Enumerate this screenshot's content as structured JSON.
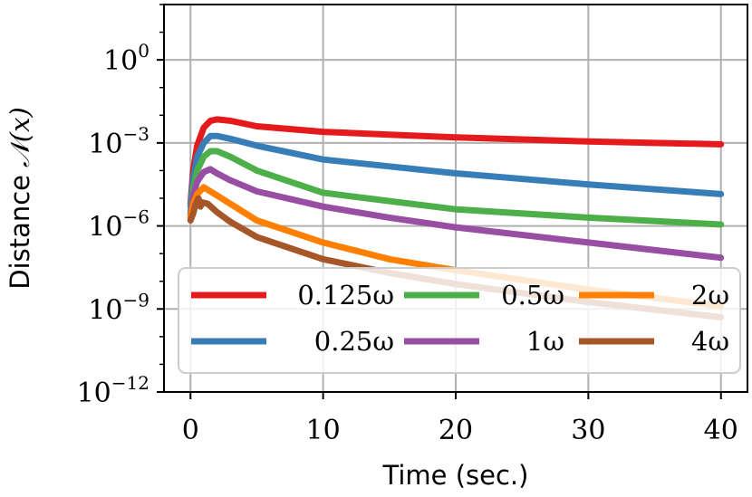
{
  "chart_data": {
    "type": "line",
    "title": "",
    "xlabel": "Time (sec.)",
    "ylabel": "Distance",
    "ylabel_math": "𝒩(x)",
    "xlim": [
      -2,
      42
    ],
    "ylim_log10": [
      -12,
      2
    ],
    "yscale": "log",
    "grid": true,
    "legend_position": "lower-right",
    "legend_columns": 3,
    "xticks": [
      {
        "value": 0,
        "label": "0"
      },
      {
        "value": 10,
        "label": "10"
      },
      {
        "value": 20,
        "label": "20"
      },
      {
        "value": 30,
        "label": "30"
      },
      {
        "value": 40,
        "label": "40"
      }
    ],
    "yticks": [
      {
        "exp": 0,
        "base": "10",
        "sup": "0"
      },
      {
        "exp": -3,
        "base": "10",
        "sup": "−3"
      },
      {
        "exp": -6,
        "base": "10",
        "sup": "−6"
      },
      {
        "exp": -9,
        "base": "10",
        "sup": "−9"
      },
      {
        "exp": -12,
        "base": "10",
        "sup": "−12"
      }
    ],
    "series": [
      {
        "name": "0.125ω",
        "color": "#e41a1c",
        "points": [
          [
            0,
            -5.2
          ],
          [
            0.2,
            -4.0
          ],
          [
            0.5,
            -3.1
          ],
          [
            1.0,
            -2.45
          ],
          [
            1.5,
            -2.2
          ],
          [
            2,
            -2.15
          ],
          [
            3,
            -2.2
          ],
          [
            5,
            -2.4
          ],
          [
            10,
            -2.6
          ],
          [
            15,
            -2.7
          ],
          [
            20,
            -2.8
          ],
          [
            30,
            -2.95
          ],
          [
            40,
            -3.05
          ]
        ]
      },
      {
        "name": "0.25ω",
        "color": "#377eb8",
        "points": [
          [
            0,
            -5.3
          ],
          [
            0.2,
            -4.3
          ],
          [
            0.5,
            -3.5
          ],
          [
            1.0,
            -3.0
          ],
          [
            1.5,
            -2.75
          ],
          [
            2,
            -2.75
          ],
          [
            3,
            -2.85
          ],
          [
            5,
            -3.1
          ],
          [
            10,
            -3.6
          ],
          [
            15,
            -3.85
          ],
          [
            20,
            -4.1
          ],
          [
            30,
            -4.5
          ],
          [
            40,
            -4.85
          ]
        ]
      },
      {
        "name": "0.5ω",
        "color": "#4daf4a",
        "points": [
          [
            0,
            -5.5
          ],
          [
            0.2,
            -4.7
          ],
          [
            0.5,
            -4.0
          ],
          [
            1.0,
            -3.5
          ],
          [
            1.5,
            -3.3
          ],
          [
            2,
            -3.3
          ],
          [
            3,
            -3.5
          ],
          [
            5,
            -4.0
          ],
          [
            10,
            -4.8
          ],
          [
            15,
            -5.1
          ],
          [
            20,
            -5.4
          ],
          [
            30,
            -5.7
          ],
          [
            40,
            -5.95
          ]
        ]
      },
      {
        "name": "1ω",
        "color": "#984ea3",
        "points": [
          [
            0,
            -5.6
          ],
          [
            0.2,
            -4.9
          ],
          [
            0.5,
            -4.4
          ],
          [
            1.0,
            -4.05
          ],
          [
            1.5,
            -3.95
          ],
          [
            2,
            -4.1
          ],
          [
            3,
            -4.35
          ],
          [
            5,
            -4.75
          ],
          [
            10,
            -5.3
          ],
          [
            15,
            -5.7
          ],
          [
            20,
            -6.05
          ],
          [
            30,
            -6.6
          ],
          [
            40,
            -7.15
          ]
        ]
      },
      {
        "name": "2ω",
        "color": "#ff7f00",
        "points": [
          [
            0,
            -5.7
          ],
          [
            0.2,
            -5.2
          ],
          [
            0.5,
            -4.85
          ],
          [
            1.0,
            -4.6
          ],
          [
            1.5,
            -4.75
          ],
          [
            2,
            -4.9
          ],
          [
            3,
            -5.2
          ],
          [
            5,
            -5.8
          ],
          [
            10,
            -6.6
          ],
          [
            15,
            -7.2
          ],
          [
            20,
            -7.6
          ],
          [
            30,
            -8.3
          ],
          [
            40,
            -8.9
          ]
        ]
      },
      {
        "name": "4ω",
        "color": "#a65628",
        "points": [
          [
            0,
            -5.8
          ],
          [
            0.2,
            -5.55
          ],
          [
            0.4,
            -5.2
          ],
          [
            0.6,
            -5.0
          ],
          [
            0.75,
            -5.3
          ],
          [
            0.9,
            -5.15
          ],
          [
            1.3,
            -5.2
          ],
          [
            2,
            -5.5
          ],
          [
            3,
            -5.85
          ],
          [
            5,
            -6.4
          ],
          [
            10,
            -7.2
          ],
          [
            15,
            -7.7
          ],
          [
            20,
            -8.1
          ],
          [
            30,
            -8.75
          ],
          [
            40,
            -9.3
          ]
        ]
      }
    ]
  }
}
